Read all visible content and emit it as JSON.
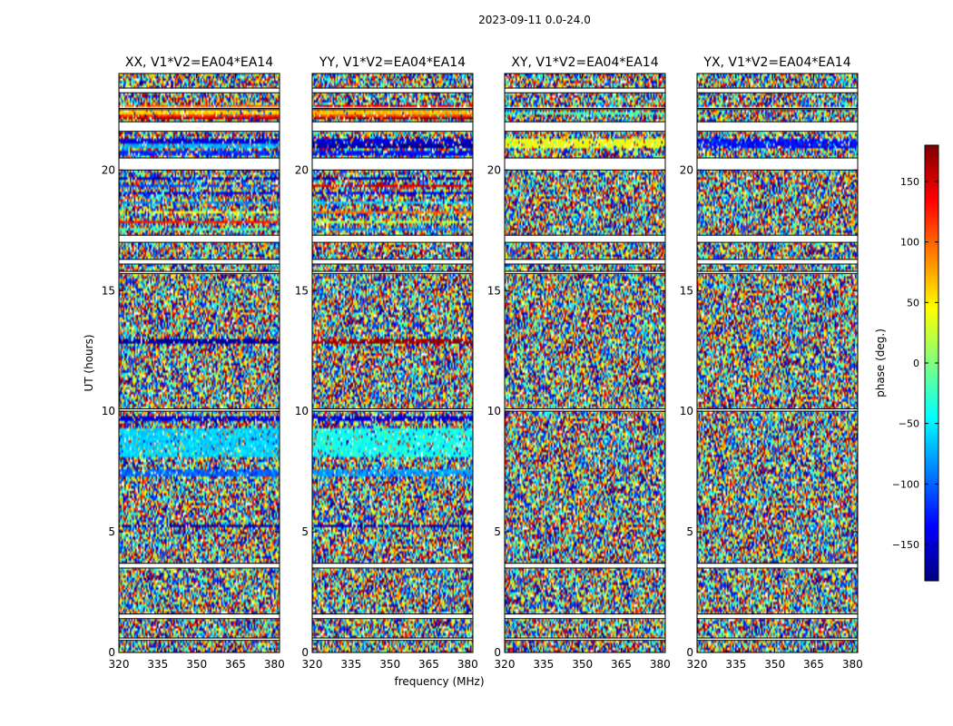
{
  "figure": {
    "suptitle": "2023-09-11 0.0-24.0",
    "shared_xlabel": "frequency (MHz)",
    "shared_ylabel": "UT (hours)"
  },
  "chart_data": [
    {
      "type": "heatmap",
      "title": "XX, V1*V2=EA04*EA14",
      "polarization": "XX",
      "baseline": "V1*V2=EA04*EA14",
      "xlabel": "frequency (MHz)",
      "ylabel": "UT (hours)",
      "xlim": [
        320,
        382
      ],
      "ylim": [
        0,
        24
      ],
      "xticks": [
        320,
        335,
        350,
        365,
        380
      ],
      "yticks": [
        0,
        5,
        10,
        15,
        20
      ],
      "value_units": "phase (deg.)",
      "coherent_bands": [
        {
          "t": [
            22.1,
            22.2
          ],
          "phase": 160
        },
        {
          "t": [
            22.2,
            22.3
          ],
          "phase": 120
        },
        {
          "t": [
            22.35,
            22.45
          ],
          "phase": 60
        },
        {
          "t": [
            22.55,
            22.65
          ],
          "phase": 100
        },
        {
          "t": [
            20.6,
            20.8
          ],
          "phase": -120
        },
        {
          "t": [
            20.9,
            21.1
          ],
          "phase": -70
        },
        {
          "t": [
            21.15,
            21.3
          ],
          "phase": -150
        },
        {
          "t": [
            19.6,
            19.7
          ],
          "phase": -160
        },
        {
          "t": [
            19.3,
            19.4
          ],
          "phase": -110
        },
        {
          "t": [
            19.0,
            19.1
          ],
          "phase": -140
        },
        {
          "t": [
            18.6,
            18.7
          ],
          "phase": -90
        },
        {
          "t": [
            18.2,
            18.3
          ],
          "phase": 40
        },
        {
          "t": [
            17.8,
            17.9
          ],
          "phase": 130
        },
        {
          "t": [
            17.5,
            17.6
          ],
          "phase": -20
        },
        {
          "t": [
            12.8,
            13.0
          ],
          "phase": -170
        },
        {
          "t": [
            9.6,
            9.8
          ],
          "phase": -150
        },
        {
          "t": [
            8.1,
            9.3
          ],
          "phase": -60
        },
        {
          "t": [
            7.3,
            7.6
          ],
          "phase": -100
        },
        {
          "t": [
            5.2,
            5.3
          ],
          "phase": -160
        }
      ],
      "flagged_intervals": [
        [
          23.2,
          23.4
        ],
        [
          22.5,
          22.55
        ],
        [
          21.6,
          22.0
        ],
        [
          20.0,
          20.5
        ],
        [
          17.0,
          17.3
        ],
        [
          16.1,
          16.3
        ],
        [
          15.7,
          15.8
        ],
        [
          10.0,
          10.1
        ],
        [
          3.5,
          3.7
        ],
        [
          1.4,
          1.6
        ],
        [
          0.5,
          0.6
        ]
      ]
    },
    {
      "type": "heatmap",
      "title": "YY, V1*V2=EA04*EA14",
      "polarization": "YY",
      "baseline": "V1*V2=EA04*EA14",
      "xlabel": "frequency (MHz)",
      "ylabel": "UT (hours)",
      "xlim": [
        320,
        382
      ],
      "ylim": [
        0,
        24
      ],
      "xticks": [
        320,
        335,
        350,
        365,
        380
      ],
      "yticks": [
        0,
        5,
        10,
        15,
        20
      ],
      "value_units": "phase (deg.)",
      "coherent_bands": [
        {
          "t": [
            22.1,
            22.2
          ],
          "phase": 170
        },
        {
          "t": [
            22.2,
            22.3
          ],
          "phase": 110
        },
        {
          "t": [
            22.35,
            22.45
          ],
          "phase": 70
        },
        {
          "t": [
            22.55,
            22.65
          ],
          "phase": 140
        },
        {
          "t": [
            20.6,
            20.8
          ],
          "phase": -130
        },
        {
          "t": [
            20.9,
            21.1
          ],
          "phase": -170
        },
        {
          "t": [
            21.15,
            21.3
          ],
          "phase": -150
        },
        {
          "t": [
            19.6,
            19.7
          ],
          "phase": -170
        },
        {
          "t": [
            19.3,
            19.4
          ],
          "phase": 150
        },
        {
          "t": [
            19.0,
            19.1
          ],
          "phase": -140
        },
        {
          "t": [
            18.6,
            18.7
          ],
          "phase": -60
        },
        {
          "t": [
            18.2,
            18.3
          ],
          "phase": 100
        },
        {
          "t": [
            17.8,
            17.9
          ],
          "phase": 20
        },
        {
          "t": [
            17.5,
            17.6
          ],
          "phase": -90
        },
        {
          "t": [
            12.8,
            13.0
          ],
          "phase": 170
        },
        {
          "t": [
            9.6,
            9.8
          ],
          "phase": -150
        },
        {
          "t": [
            8.1,
            9.3
          ],
          "phase": -40
        },
        {
          "t": [
            7.3,
            7.6
          ],
          "phase": -80
        },
        {
          "t": [
            5.2,
            5.3
          ],
          "phase": -160
        }
      ],
      "flagged_intervals": [
        [
          23.2,
          23.4
        ],
        [
          22.5,
          22.55
        ],
        [
          21.6,
          22.0
        ],
        [
          20.0,
          20.5
        ],
        [
          17.0,
          17.3
        ],
        [
          16.1,
          16.3
        ],
        [
          15.7,
          15.8
        ],
        [
          10.0,
          10.1
        ],
        [
          3.5,
          3.7
        ],
        [
          1.4,
          1.6
        ],
        [
          0.5,
          0.6
        ]
      ]
    },
    {
      "type": "heatmap",
      "title": "XY, V1*V2=EA04*EA14",
      "polarization": "XY",
      "baseline": "V1*V2=EA04*EA14",
      "xlabel": "frequency (MHz)",
      "ylabel": "UT (hours)",
      "xlim": [
        320,
        382
      ],
      "ylim": [
        0,
        24
      ],
      "xticks": [
        320,
        335,
        350,
        365,
        380
      ],
      "yticks": [
        0,
        5,
        10,
        15,
        20
      ],
      "value_units": "phase (deg.)",
      "coherent_bands": [
        {
          "t": [
            22.3,
            22.4
          ],
          "phase": -20
        },
        {
          "t": [
            20.9,
            21.3
          ],
          "phase": 40
        }
      ],
      "flagged_intervals": [
        [
          23.2,
          23.4
        ],
        [
          22.5,
          22.55
        ],
        [
          21.6,
          22.0
        ],
        [
          20.0,
          20.5
        ],
        [
          17.0,
          17.3
        ],
        [
          16.1,
          16.3
        ],
        [
          15.7,
          15.8
        ],
        [
          10.0,
          10.1
        ],
        [
          3.5,
          3.7
        ],
        [
          1.4,
          1.6
        ],
        [
          0.5,
          0.6
        ]
      ]
    },
    {
      "type": "heatmap",
      "title": "YX, V1*V2=EA04*EA14",
      "polarization": "YX",
      "baseline": "V1*V2=EA04*EA14",
      "xlabel": "frequency (MHz)",
      "ylabel": "UT (hours)",
      "xlim": [
        320,
        382
      ],
      "ylim": [
        0,
        24
      ],
      "xticks": [
        320,
        335,
        350,
        365,
        380
      ],
      "yticks": [
        0,
        5,
        10,
        15,
        20
      ],
      "value_units": "phase (deg.)",
      "coherent_bands": [
        {
          "t": [
            20.9,
            21.3
          ],
          "phase": -130
        }
      ],
      "flagged_intervals": [
        [
          23.2,
          23.4
        ],
        [
          22.5,
          22.55
        ],
        [
          21.6,
          22.0
        ],
        [
          20.0,
          20.5
        ],
        [
          17.0,
          17.3
        ],
        [
          16.1,
          16.3
        ],
        [
          15.7,
          15.8
        ],
        [
          10.0,
          10.1
        ],
        [
          3.5,
          3.7
        ],
        [
          1.4,
          1.6
        ],
        [
          0.5,
          0.6
        ]
      ]
    }
  ],
  "colorbar": {
    "label": "phase (deg.)",
    "range": [
      -180,
      180
    ],
    "ticks": [
      150,
      100,
      50,
      0,
      -50,
      -100,
      -150
    ],
    "tick_labels": [
      "150",
      "100",
      "50",
      "0",
      "−50",
      "−100",
      "−150"
    ],
    "colormap": "jet",
    "colors": [
      "#00007f",
      "#0000ff",
      "#007fff",
      "#00ffff",
      "#7fff7f",
      "#ffff00",
      "#ff7f00",
      "#ff0000",
      "#7f0000"
    ]
  }
}
